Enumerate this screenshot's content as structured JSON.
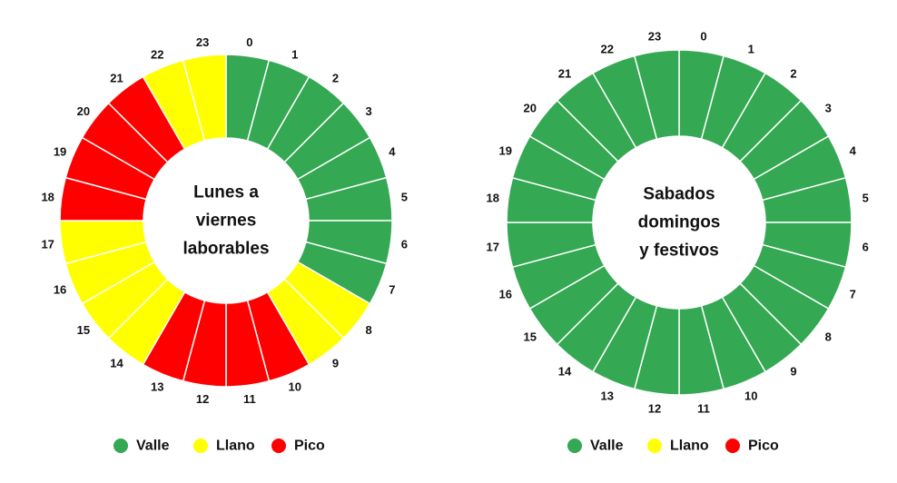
{
  "chart_data": [
    {
      "type": "pie",
      "title": "Lunes a viernes laborables",
      "title_lines": [
        "Lunes a",
        "viernes",
        "laborables"
      ],
      "categories": [
        "0",
        "1",
        "2",
        "3",
        "4",
        "5",
        "6",
        "7",
        "8",
        "9",
        "10",
        "11",
        "12",
        "13",
        "14",
        "15",
        "16",
        "17",
        "18",
        "19",
        "20",
        "21",
        "22",
        "23"
      ],
      "values": [
        1,
        1,
        1,
        1,
        1,
        1,
        1,
        1,
        1,
        1,
        1,
        1,
        1,
        1,
        1,
        1,
        1,
        1,
        1,
        1,
        1,
        1,
        1,
        1
      ],
      "period": [
        "Valle",
        "Valle",
        "Valle",
        "Valle",
        "Valle",
        "Valle",
        "Valle",
        "Valle",
        "Llano",
        "Llano",
        "Pico",
        "Pico",
        "Pico",
        "Pico",
        "Llano",
        "Llano",
        "Llano",
        "Llano",
        "Pico",
        "Pico",
        "Pico",
        "Pico",
        "Llano",
        "Llano"
      ],
      "legend": [
        "Valle",
        "Llano",
        "Pico"
      ],
      "legend_position": "bottom"
    },
    {
      "type": "pie",
      "title": "Sabados domingos y festivos",
      "title_lines": [
        "Sabados",
        "domingos",
        "y festivos"
      ],
      "categories": [
        "0",
        "1",
        "2",
        "3",
        "4",
        "5",
        "6",
        "7",
        "8",
        "9",
        "10",
        "11",
        "12",
        "13",
        "14",
        "15",
        "16",
        "17",
        "18",
        "19",
        "20",
        "21",
        "22",
        "23"
      ],
      "values": [
        1,
        1,
        1,
        1,
        1,
        1,
        1,
        1,
        1,
        1,
        1,
        1,
        1,
        1,
        1,
        1,
        1,
        1,
        1,
        1,
        1,
        1,
        1,
        1
      ],
      "period": [
        "Valle",
        "Valle",
        "Valle",
        "Valle",
        "Valle",
        "Valle",
        "Valle",
        "Valle",
        "Valle",
        "Valle",
        "Valle",
        "Valle",
        "Valle",
        "Valle",
        "Valle",
        "Valle",
        "Valle",
        "Valle",
        "Valle",
        "Valle",
        "Valle",
        "Valle",
        "Valle",
        "Valle"
      ],
      "legend": [
        "Valle",
        "Llano",
        "Pico"
      ],
      "legend_position": "bottom"
    }
  ],
  "colors": {
    "Valle": "#34a853",
    "Llano": "#ffff00",
    "Pico": "#ff0000"
  }
}
